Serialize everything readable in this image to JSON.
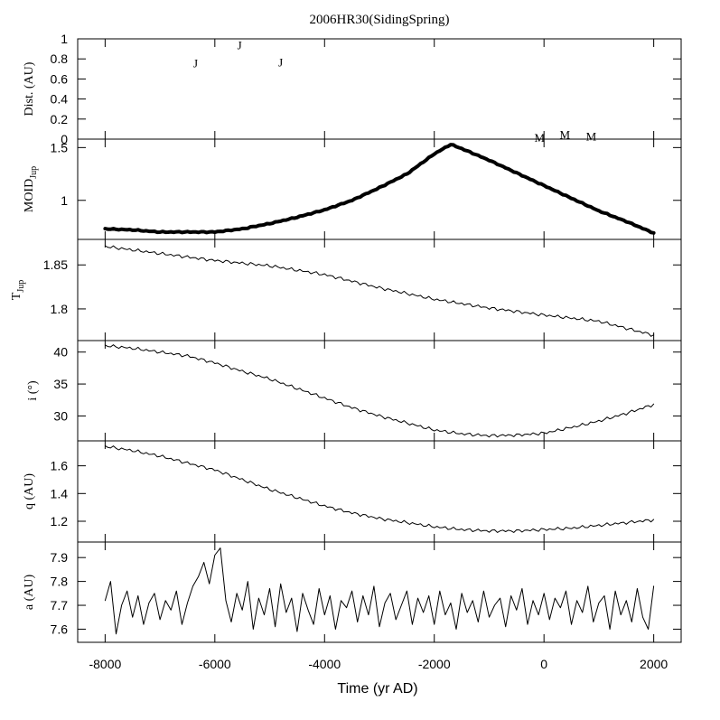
{
  "title": "2006HR30(SidingSpring)",
  "xlabel": "Time (yr AD)",
  "x_ticks": [
    -8000,
    -6000,
    -4000,
    -2000,
    0,
    2000
  ],
  "x_tick_labels": [
    "-8000",
    "-6000",
    "-4000",
    "-2000",
    "0",
    "2000"
  ],
  "chart_data": [
    {
      "type": "scatter",
      "ylabel": "Dist. (AU)",
      "xlim": [
        -8500,
        2500
      ],
      "ylim": [
        0,
        1
      ],
      "y_ticks": [
        0,
        0.2,
        0.4,
        0.6,
        0.8,
        1
      ],
      "y_tick_labels": [
        "0",
        "0.2",
        "0.4",
        "0.6",
        "0.8",
        "1"
      ],
      "encounters": [
        {
          "label": "J",
          "x": -6350,
          "y": 0.76
        },
        {
          "label": "J",
          "x": -5550,
          "y": 0.94
        },
        {
          "label": "J",
          "x": -4800,
          "y": 0.77
        },
        {
          "label": "M",
          "x": -80,
          "y": 0.02
        },
        {
          "label": "M",
          "x": 380,
          "y": 0.05
        },
        {
          "label": "M",
          "x": 860,
          "y": 0.03
        }
      ]
    },
    {
      "type": "line",
      "ylabel_main": "MOID",
      "ylabel_sub": "Jup",
      "xlim": [
        -8500,
        2500
      ],
      "ylim": [
        0.63,
        1.58
      ],
      "y_ticks": [
        1,
        1.5
      ],
      "y_tick_labels": [
        "1",
        "1.5"
      ],
      "x": [
        -8000,
        -7500,
        -7000,
        -6500,
        -6000,
        -5500,
        -5000,
        -4500,
        -4000,
        -3500,
        -3000,
        -2500,
        -2000,
        -1700,
        -1500,
        -1000,
        -500,
        0,
        500,
        1000,
        1500,
        2000
      ],
      "y": [
        0.73,
        0.72,
        0.7,
        0.7,
        0.7,
        0.73,
        0.78,
        0.84,
        0.91,
        1.0,
        1.12,
        1.25,
        1.44,
        1.53,
        1.49,
        1.38,
        1.26,
        1.14,
        1.02,
        0.9,
        0.8,
        0.69
      ]
    },
    {
      "type": "line",
      "ylabel_main": "T",
      "ylabel_sub": "Jup",
      "xlim": [
        -8500,
        2500
      ],
      "ylim": [
        1.764,
        1.879
      ],
      "y_ticks": [
        1.8,
        1.85
      ],
      "y_tick_labels": [
        "1.8",
        "1.85"
      ],
      "x": [
        -8000,
        -7000,
        -6000,
        -5000,
        -4000,
        -3000,
        -2000,
        -1000,
        0,
        1000,
        2000
      ],
      "y": [
        1.871,
        1.863,
        1.855,
        1.849,
        1.839,
        1.824,
        1.811,
        1.801,
        1.793,
        1.786,
        1.77
      ]
    },
    {
      "type": "line",
      "ylabel": "i (°)",
      "xlim": [
        -8500,
        2500
      ],
      "ylim": [
        26.1,
        41.8
      ],
      "y_ticks": [
        30,
        35,
        40
      ],
      "y_tick_labels": [
        "30",
        "35",
        "40"
      ],
      "x": [
        -8000,
        -7500,
        -7000,
        -6500,
        -6000,
        -5500,
        -5000,
        -4500,
        -4000,
        -3500,
        -3000,
        -2500,
        -2000,
        -1500,
        -1000,
        -500,
        0,
        500,
        1000,
        1500,
        2000
      ],
      "y": [
        41.0,
        40.6,
        40.0,
        39.4,
        38.3,
        37.0,
        35.8,
        34.3,
        32.8,
        31.3,
        30.0,
        28.9,
        27.8,
        27.2,
        26.9,
        27.0,
        27.3,
        28.2,
        29.2,
        30.4,
        31.8
      ]
    },
    {
      "type": "line",
      "ylabel": "q (AU)",
      "xlim": [
        -8500,
        2500
      ],
      "ylim": [
        1.05,
        1.78
      ],
      "y_ticks": [
        1.2,
        1.4,
        1.6
      ],
      "y_tick_labels": [
        "1.2",
        "1.4",
        "1.6"
      ],
      "x": [
        -8000,
        -7500,
        -7000,
        -6500,
        -6000,
        -5500,
        -5000,
        -4500,
        -4000,
        -3500,
        -3000,
        -2500,
        -2000,
        -1500,
        -1000,
        -500,
        0,
        500,
        1000,
        1500,
        2000
      ],
      "y": [
        1.74,
        1.71,
        1.67,
        1.62,
        1.57,
        1.5,
        1.43,
        1.37,
        1.31,
        1.26,
        1.22,
        1.19,
        1.16,
        1.14,
        1.13,
        1.13,
        1.14,
        1.15,
        1.17,
        1.19,
        1.21
      ]
    },
    {
      "type": "line",
      "ylabel": "a (AU)",
      "xlim": [
        -8500,
        2500
      ],
      "ylim": [
        7.545,
        7.965
      ],
      "y_ticks": [
        7.6,
        7.7,
        7.8,
        7.9
      ],
      "y_tick_labels": [
        "7.6",
        "7.7",
        "7.8",
        "7.9"
      ],
      "x": [
        -8000,
        -7900,
        -7800,
        -7700,
        -7600,
        -7500,
        -7400,
        -7300,
        -7200,
        -7100,
        -7000,
        -6900,
        -6800,
        -6700,
        -6600,
        -6500,
        -6400,
        -6300,
        -6200,
        -6100,
        -6000,
        -5900,
        -5800,
        -5700,
        -5600,
        -5500,
        -5400,
        -5300,
        -5200,
        -5100,
        -5000,
        -4900,
        -4800,
        -4700,
        -4600,
        -4500,
        -4400,
        -4300,
        -4200,
        -4100,
        -4000,
        -3900,
        -3800,
        -3700,
        -3600,
        -3500,
        -3400,
        -3300,
        -3200,
        -3100,
        -3000,
        -2900,
        -2800,
        -2700,
        -2600,
        -2500,
        -2400,
        -2300,
        -2200,
        -2100,
        -2000,
        -1900,
        -1800,
        -1700,
        -1600,
        -1500,
        -1400,
        -1300,
        -1200,
        -1100,
        -1000,
        -900,
        -800,
        -700,
        -600,
        -500,
        -400,
        -300,
        -200,
        -100,
        0,
        100,
        200,
        300,
        400,
        500,
        600,
        700,
        800,
        900,
        1000,
        1100,
        1200,
        1300,
        1400,
        1500,
        1600,
        1700,
        1800,
        1900,
        2000
      ],
      "y": [
        7.72,
        7.8,
        7.58,
        7.7,
        7.76,
        7.65,
        7.74,
        7.62,
        7.71,
        7.75,
        7.64,
        7.72,
        7.68,
        7.76,
        7.62,
        7.71,
        7.78,
        7.82,
        7.88,
        7.79,
        7.91,
        7.94,
        7.72,
        7.63,
        7.75,
        7.68,
        7.8,
        7.6,
        7.73,
        7.66,
        7.77,
        7.61,
        7.79,
        7.67,
        7.73,
        7.59,
        7.75,
        7.68,
        7.62,
        7.77,
        7.66,
        7.74,
        7.6,
        7.72,
        7.69,
        7.76,
        7.63,
        7.74,
        7.66,
        7.78,
        7.61,
        7.71,
        7.75,
        7.64,
        7.7,
        7.76,
        7.62,
        7.73,
        7.67,
        7.74,
        7.62,
        7.76,
        7.66,
        7.71,
        7.6,
        7.75,
        7.67,
        7.72,
        7.63,
        7.76,
        7.65,
        7.7,
        7.73,
        7.61,
        7.74,
        7.68,
        7.77,
        7.62,
        7.72,
        7.66,
        7.75,
        7.64,
        7.73,
        7.69,
        7.76,
        7.62,
        7.72,
        7.67,
        7.78,
        7.63,
        7.71,
        7.74,
        7.6,
        7.76,
        7.66,
        7.72,
        7.63,
        7.77,
        7.65,
        7.6,
        7.78
      ]
    }
  ]
}
